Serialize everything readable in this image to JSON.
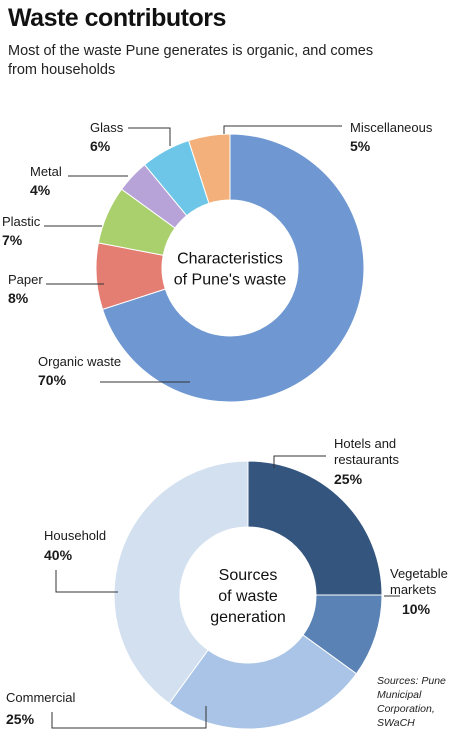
{
  "header": {
    "title": "Waste contributors",
    "subtitle": "Most of the waste Pune generates is organic, and comes from households"
  },
  "chart_data": [
    {
      "type": "pie",
      "center_label": [
        "Characteristics",
        "of Pune's waste"
      ],
      "slices": [
        {
          "label": "Organic waste",
          "value": 70,
          "display": "70%",
          "color": "#6f98d2"
        },
        {
          "label": "Paper",
          "value": 8,
          "display": "8%",
          "color": "#e47e73"
        },
        {
          "label": "Plastic",
          "value": 7,
          "display": "7%",
          "color": "#a9d06c"
        },
        {
          "label": "Metal",
          "value": 4,
          "display": "4%",
          "color": "#b7a3d8"
        },
        {
          "label": "Glass",
          "value": 6,
          "display": "6%",
          "color": "#6dc6e8"
        },
        {
          "label": "Miscellaneous",
          "value": 5,
          "display": "5%",
          "color": "#f4b07a"
        }
      ]
    },
    {
      "type": "pie",
      "center_label": [
        "Sources",
        "of waste",
        "generation"
      ],
      "slices": [
        {
          "label": "Hotels and restaurants",
          "label_lines": [
            "Hotels and",
            "restaurants"
          ],
          "value": 25,
          "display": "25%",
          "color": "#33557e"
        },
        {
          "label": "Vegetable markets",
          "label_lines": [
            "Vegetable",
            "markets"
          ],
          "value": 10,
          "display": "10%",
          "color": "#5a82b5"
        },
        {
          "label": "Commercial",
          "label_lines": [
            "Commercial"
          ],
          "value": 25,
          "display": "25%",
          "color": "#a9c4e6"
        },
        {
          "label": "Household",
          "label_lines": [
            "Household"
          ],
          "value": 40,
          "display": "40%",
          "color": "#d3e0f0"
        }
      ],
      "source_lines": [
        "Sources: Pune",
        "Municipal",
        "Corporation,",
        "SWaCH"
      ]
    }
  ]
}
